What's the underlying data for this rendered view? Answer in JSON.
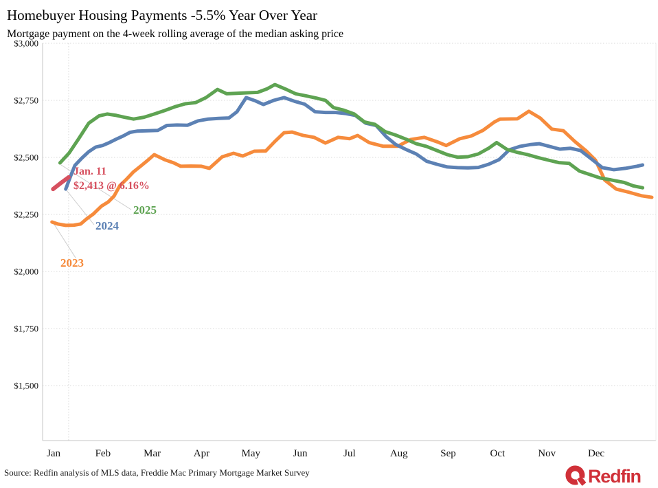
{
  "header": {
    "title": "Homebuyer Housing Payments -5.5% Year Over Year",
    "subtitle": "Mortgage payment on the 4-week rolling average of the median asking price"
  },
  "source": "Source: Redfin analysis of MLS data, Freddie Mac Primary Mortgage Market Survey",
  "logo": {
    "text": "Redfin",
    "color": "#d03038"
  },
  "annotations": {
    "date_label": "Jan. 11",
    "value_label": "$2,413 @ 6.16%",
    "annotation_color": "#d6505f",
    "year_labels": [
      {
        "text": "2025",
        "color": "#5ea352"
      },
      {
        "text": "2024",
        "color": "#5c81b4"
      },
      {
        "text": "2023",
        "color": "#f68b3c"
      }
    ]
  },
  "chart_data": {
    "type": "line",
    "title": "Homebuyer Housing Payments -5.5% Year Over Year",
    "subtitle": "Mortgage payment on the 4-week rolling average of the median asking price",
    "grid": "horizontal dotted, vertical reference line at current week",
    "legend_position": "inline labels with leader lines",
    "x_axis": {
      "unit": "week of year",
      "months": [
        "Jan",
        "Feb",
        "Mar",
        "Apr",
        "May",
        "Jun",
        "Jul",
        "Aug",
        "Sep",
        "Oct",
        "Nov",
        "Dec"
      ]
    },
    "y_axis": {
      "ticks": [
        {
          "value": 3000,
          "label": "$3,000"
        },
        {
          "value": 2750,
          "label": "$2,750"
        },
        {
          "value": 2500,
          "label": "$2,500"
        },
        {
          "value": 2250,
          "label": "$2,250"
        },
        {
          "value": 2000,
          "label": "$2,000"
        },
        {
          "value": 1750,
          "label": "$1,750"
        },
        {
          "value": 1500,
          "label": "$1,500"
        }
      ]
    },
    "ylim": [
      1259,
      3000
    ],
    "current_date_line_week": 1.55,
    "series": [
      {
        "name": "2023",
        "color": "#f68b3c",
        "width": 5,
        "points": [
          [
            0.1,
            2217
          ],
          [
            0.6,
            2208
          ],
          [
            1.3,
            2202
          ],
          [
            2.0,
            2203
          ],
          [
            2.6,
            2208
          ],
          [
            3.1,
            2230
          ],
          [
            3.7,
            2252
          ],
          [
            4.4,
            2286
          ],
          [
            5.0,
            2305
          ],
          [
            5.5,
            2330
          ],
          [
            6.0,
            2376
          ],
          [
            6.6,
            2405
          ],
          [
            7.2,
            2437
          ],
          [
            7.9,
            2465
          ],
          [
            8.5,
            2490
          ],
          [
            9.0,
            2512
          ],
          [
            9.9,
            2490
          ],
          [
            10.7,
            2476
          ],
          [
            11.3,
            2461
          ],
          [
            12.2,
            2462
          ],
          [
            13.1,
            2461
          ],
          [
            13.8,
            2452
          ],
          [
            14.9,
            2502
          ],
          [
            15.9,
            2518
          ],
          [
            16.7,
            2506
          ],
          [
            17.7,
            2527
          ],
          [
            18.7,
            2528
          ],
          [
            19.5,
            2570
          ],
          [
            20.3,
            2608
          ],
          [
            21.0,
            2611
          ],
          [
            21.9,
            2597
          ],
          [
            22.9,
            2588
          ],
          [
            23.9,
            2563
          ],
          [
            25.0,
            2588
          ],
          [
            26.0,
            2582
          ],
          [
            26.7,
            2596
          ],
          [
            27.7,
            2565
          ],
          [
            28.9,
            2549
          ],
          [
            30.2,
            2549
          ],
          [
            31.3,
            2578
          ],
          [
            32.5,
            2588
          ],
          [
            33.7,
            2567
          ],
          [
            34.4,
            2552
          ],
          [
            35.6,
            2582
          ],
          [
            36.6,
            2594
          ],
          [
            37.6,
            2618
          ],
          [
            38.6,
            2655
          ],
          [
            39.1,
            2668
          ],
          [
            40.6,
            2669
          ],
          [
            41.6,
            2702
          ],
          [
            42.6,
            2672
          ],
          [
            43.6,
            2624
          ],
          [
            44.6,
            2617
          ],
          [
            45.6,
            2570
          ],
          [
            46.6,
            2528
          ],
          [
            47.4,
            2488
          ],
          [
            48.2,
            2401
          ],
          [
            49.2,
            2361
          ],
          [
            50.4,
            2346
          ],
          [
            51.4,
            2332
          ],
          [
            52.3,
            2325
          ]
        ]
      },
      {
        "name": "2024",
        "color": "#5c81b4",
        "width": 5,
        "points": [
          [
            1.3,
            2361
          ],
          [
            1.7,
            2415
          ],
          [
            2.1,
            2465
          ],
          [
            2.7,
            2497
          ],
          [
            3.3,
            2525
          ],
          [
            3.9,
            2545
          ],
          [
            4.5,
            2552
          ],
          [
            5.1,
            2565
          ],
          [
            5.7,
            2580
          ],
          [
            6.3,
            2594
          ],
          [
            6.9,
            2610
          ],
          [
            7.5,
            2615
          ],
          [
            8.4,
            2617
          ],
          [
            9.3,
            2618
          ],
          [
            10.1,
            2640
          ],
          [
            11.0,
            2642
          ],
          [
            11.9,
            2641
          ],
          [
            12.8,
            2660
          ],
          [
            13.7,
            2668
          ],
          [
            14.6,
            2671
          ],
          [
            15.5,
            2673
          ],
          [
            16.2,
            2700
          ],
          [
            17.0,
            2762
          ],
          [
            17.8,
            2748
          ],
          [
            18.5,
            2732
          ],
          [
            19.4,
            2750
          ],
          [
            20.3,
            2762
          ],
          [
            21.2,
            2746
          ],
          [
            22.1,
            2733
          ],
          [
            23.0,
            2700
          ],
          [
            23.9,
            2697
          ],
          [
            24.8,
            2697
          ],
          [
            25.7,
            2692
          ],
          [
            26.5,
            2684
          ],
          [
            27.4,
            2650
          ],
          [
            28.3,
            2640
          ],
          [
            29.2,
            2590
          ],
          [
            30.0,
            2557
          ],
          [
            30.9,
            2535
          ],
          [
            31.8,
            2515
          ],
          [
            32.7,
            2483
          ],
          [
            33.6,
            2470
          ],
          [
            34.5,
            2458
          ],
          [
            35.4,
            2455
          ],
          [
            36.3,
            2454
          ],
          [
            37.2,
            2456
          ],
          [
            38.1,
            2470
          ],
          [
            39.0,
            2490
          ],
          [
            39.9,
            2533
          ],
          [
            40.8,
            2548
          ],
          [
            41.7,
            2556
          ],
          [
            42.5,
            2560
          ],
          [
            43.4,
            2548
          ],
          [
            44.3,
            2536
          ],
          [
            45.2,
            2540
          ],
          [
            46.1,
            2530
          ],
          [
            47.0,
            2495
          ],
          [
            48.0,
            2455
          ],
          [
            49.0,
            2446
          ],
          [
            50.0,
            2452
          ],
          [
            51.0,
            2461
          ],
          [
            51.5,
            2467
          ]
        ]
      },
      {
        "name": "2025",
        "color": "#5ea352",
        "width": 5,
        "points": [
          [
            0.8,
            2476
          ],
          [
            1.6,
            2520
          ],
          [
            2.4,
            2580
          ],
          [
            3.3,
            2650
          ],
          [
            4.2,
            2682
          ],
          [
            4.9,
            2690
          ],
          [
            5.7,
            2684
          ],
          [
            6.4,
            2676
          ],
          [
            7.2,
            2668
          ],
          [
            8.1,
            2676
          ],
          [
            9.0,
            2690
          ],
          [
            9.9,
            2705
          ],
          [
            10.8,
            2722
          ],
          [
            11.7,
            2735
          ],
          [
            12.6,
            2740
          ],
          [
            13.5,
            2762
          ],
          [
            14.5,
            2798
          ],
          [
            15.3,
            2779
          ],
          [
            16.2,
            2781
          ],
          [
            17.1,
            2783
          ],
          [
            18.0,
            2785
          ],
          [
            18.8,
            2800
          ],
          [
            19.5,
            2819
          ],
          [
            20.4,
            2800
          ],
          [
            21.3,
            2779
          ],
          [
            22.2,
            2770
          ],
          [
            23.1,
            2760
          ],
          [
            23.9,
            2750
          ],
          [
            24.6,
            2718
          ],
          [
            25.5,
            2707
          ],
          [
            26.4,
            2690
          ],
          [
            27.3,
            2655
          ],
          [
            28.2,
            2645
          ],
          [
            29.1,
            2613
          ],
          [
            30.0,
            2598
          ],
          [
            30.9,
            2580
          ],
          [
            31.8,
            2560
          ],
          [
            32.7,
            2548
          ],
          [
            33.6,
            2530
          ],
          [
            34.5,
            2512
          ],
          [
            35.4,
            2501
          ],
          [
            36.3,
            2503
          ],
          [
            37.2,
            2515
          ],
          [
            38.1,
            2540
          ],
          [
            38.8,
            2565
          ],
          [
            39.7,
            2535
          ],
          [
            40.6,
            2522
          ],
          [
            41.5,
            2512
          ],
          [
            42.4,
            2499
          ],
          [
            43.3,
            2488
          ],
          [
            44.2,
            2477
          ],
          [
            45.1,
            2474
          ],
          [
            46.0,
            2440
          ],
          [
            46.9,
            2425
          ],
          [
            47.8,
            2410
          ],
          [
            48.8,
            2401
          ],
          [
            49.9,
            2390
          ],
          [
            50.7,
            2375
          ],
          [
            51.5,
            2367
          ]
        ]
      },
      {
        "name": "current",
        "color": "#d6505f",
        "width": 6,
        "points": [
          [
            0.2,
            2361
          ],
          [
            0.9,
            2389
          ],
          [
            1.55,
            2413
          ]
        ]
      }
    ]
  }
}
